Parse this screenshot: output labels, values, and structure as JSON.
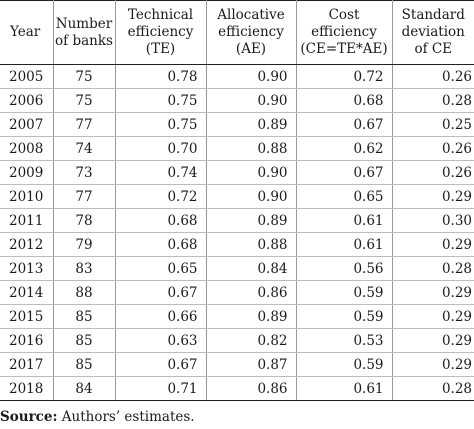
{
  "table": {
    "headers": [
      [
        "Year"
      ],
      [
        "Number",
        "of banks"
      ],
      [
        "Technical",
        "efficiency",
        "(TE)"
      ],
      [
        "Allocative",
        "efficiency",
        "(AE)"
      ],
      [
        "Cost",
        "efficiency",
        "(CE=TE*AE)"
      ],
      [
        "Standard",
        "deviation",
        "of CE"
      ]
    ],
    "rows": [
      [
        "2005",
        "75",
        "0.78",
        "0.90",
        "0.72",
        "0.26"
      ],
      [
        "2006",
        "75",
        "0.75",
        "0.90",
        "0.68",
        "0.28"
      ],
      [
        "2007",
        "77",
        "0.75",
        "0.89",
        "0.67",
        "0.25"
      ],
      [
        "2008",
        "74",
        "0.70",
        "0.88",
        "0.62",
        "0.26"
      ],
      [
        "2009",
        "73",
        "0.74",
        "0.90",
        "0.67",
        "0.26"
      ],
      [
        "2010",
        "77",
        "0.72",
        "0.90",
        "0.65",
        "0.29"
      ],
      [
        "2011",
        "78",
        "0.68",
        "0.89",
        "0.61",
        "0.30"
      ],
      [
        "2012",
        "79",
        "0.68",
        "0.88",
        "0.61",
        "0.29"
      ],
      [
        "2013",
        "83",
        "0.65",
        "0.84",
        "0.56",
        "0.28"
      ],
      [
        "2014",
        "88",
        "0.67",
        "0.86",
        "0.59",
        "0.29"
      ],
      [
        "2015",
        "85",
        "0.66",
        "0.89",
        "0.59",
        "0.29"
      ],
      [
        "2016",
        "85",
        "0.63",
        "0.82",
        "0.53",
        "0.29"
      ],
      [
        "2017",
        "85",
        "0.67",
        "0.87",
        "0.59",
        "0.29"
      ],
      [
        "2018",
        "84",
        "0.71",
        "0.86",
        "0.61",
        "0.28"
      ]
    ]
  },
  "source": {
    "label": "Source:",
    "text": " Authors’ estimates."
  }
}
